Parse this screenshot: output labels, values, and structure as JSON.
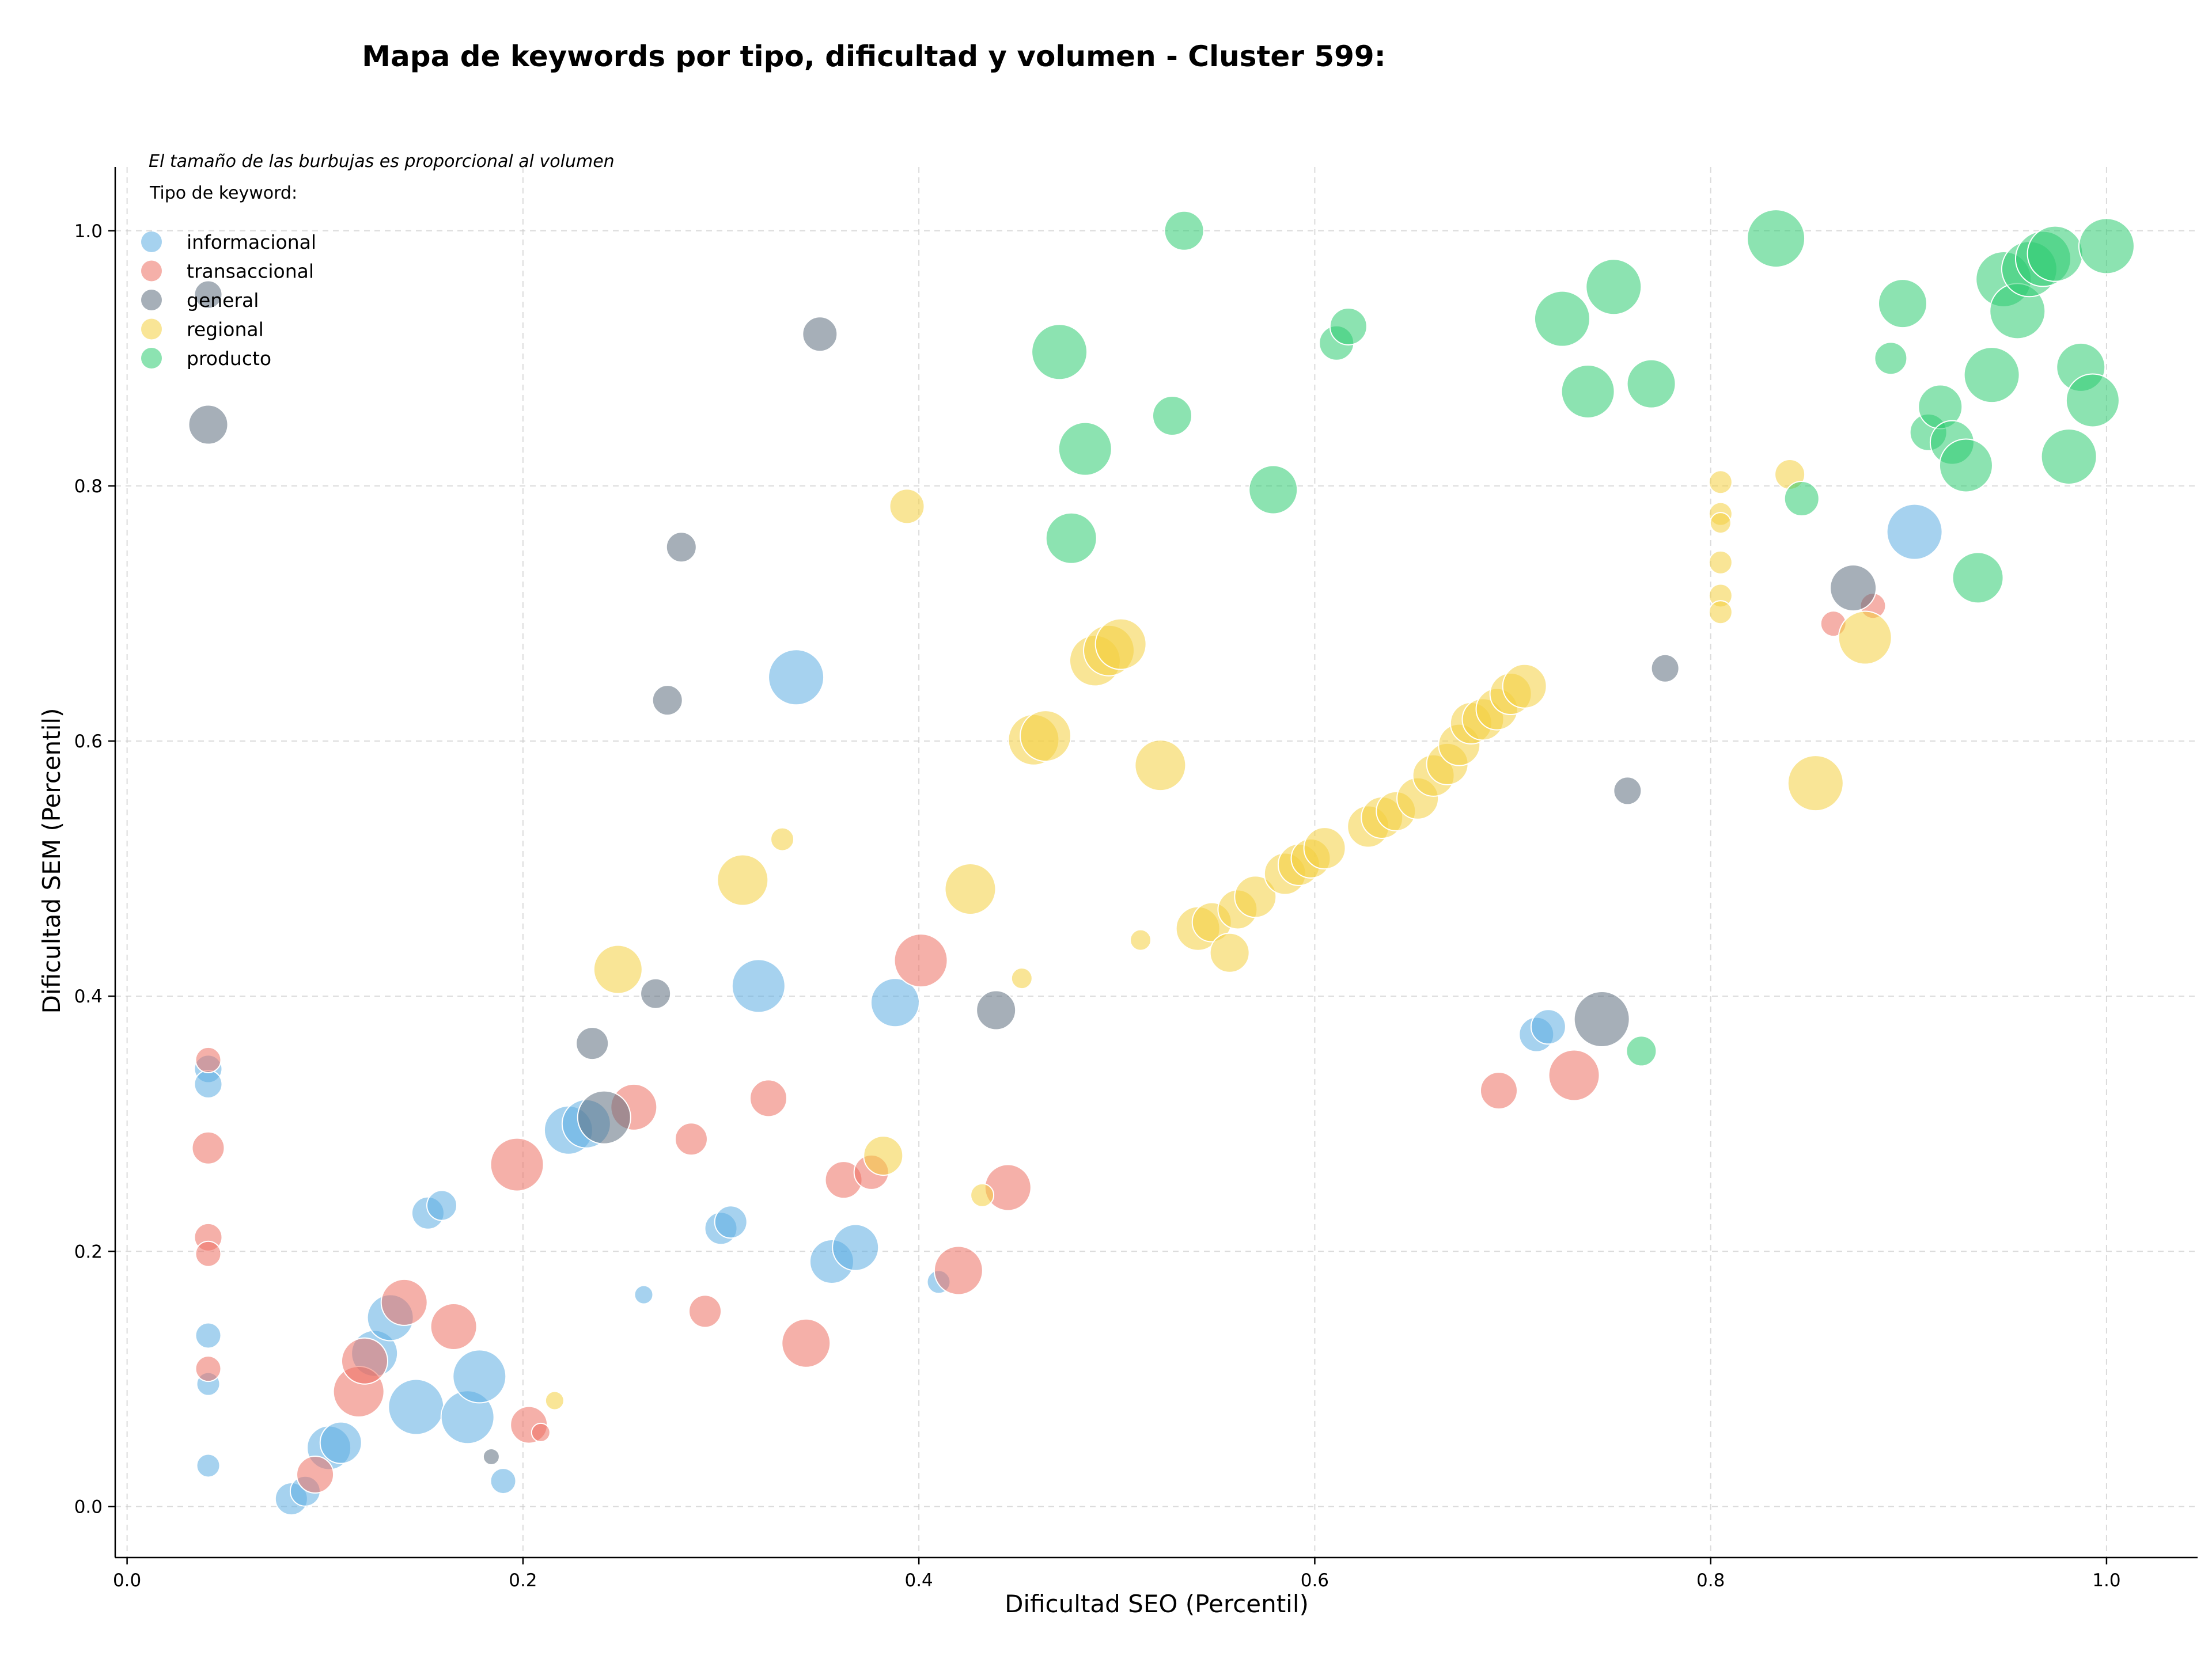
{
  "chart_data": {
    "type": "scatter",
    "title": "Mapa de keywords por tipo, dificultad y volumen - Cluster 599:",
    "xlabel": "Dificultad SEO (Percentil)",
    "ylabel": "Dificultad SEM (Percentil)",
    "xlim": [
      -0.006,
      1.046
    ],
    "ylim": [
      -0.04,
      1.05
    ],
    "xticks": [
      0.0,
      0.2,
      0.4,
      0.6,
      0.8,
      1.0
    ],
    "yticks": [
      0.0,
      0.2,
      0.4,
      0.6,
      0.8,
      1.0
    ],
    "xtick_labels": [
      "0.0",
      "0.2",
      "0.4",
      "0.6",
      "0.8",
      "1.0"
    ],
    "ytick_labels": [
      "0.0",
      "0.2",
      "0.4",
      "0.6",
      "0.8",
      "1.0"
    ],
    "grid": true,
    "legend_placement": "top-left",
    "note": "El tamaño de las burbujas es proporcional al volumen",
    "legend_title": "Tipo de keyword:",
    "series": [
      {
        "name": "informacional",
        "color": "#5DADE2",
        "points": [
          [
            0.041,
            0.343,
            24
          ],
          [
            0.041,
            0.331,
            24
          ],
          [
            0.041,
            0.134,
            22
          ],
          [
            0.041,
            0.096,
            20
          ],
          [
            0.041,
            0.032,
            20
          ],
          [
            0.083,
            0.006,
            28
          ],
          [
            0.09,
            0.012,
            26
          ],
          [
            0.102,
            0.046,
            38
          ],
          [
            0.108,
            0.05,
            36
          ],
          [
            0.125,
            0.12,
            40
          ],
          [
            0.133,
            0.148,
            40
          ],
          [
            0.146,
            0.078,
            48
          ],
          [
            0.152,
            0.23,
            28
          ],
          [
            0.159,
            0.236,
            26
          ],
          [
            0.172,
            0.07,
            46
          ],
          [
            0.178,
            0.102,
            46
          ],
          [
            0.19,
            0.02,
            22
          ],
          [
            0.223,
            0.295,
            42
          ],
          [
            0.232,
            0.3,
            42
          ],
          [
            0.261,
            0.166,
            16
          ],
          [
            0.3,
            0.218,
            28
          ],
          [
            0.305,
            0.223,
            28
          ],
          [
            0.319,
            0.408,
            46
          ],
          [
            0.338,
            0.65,
            48
          ],
          [
            0.356,
            0.192,
            38
          ],
          [
            0.368,
            0.203,
            40
          ],
          [
            0.388,
            0.395,
            42
          ],
          [
            0.41,
            0.176,
            20
          ],
          [
            0.712,
            0.37,
            30
          ],
          [
            0.718,
            0.376,
            30
          ],
          [
            0.903,
            0.764,
            48
          ]
        ]
      },
      {
        "name": "transaccional",
        "color": "#EC7063",
        "points": [
          [
            0.041,
            0.35,
            22
          ],
          [
            0.041,
            0.281,
            28
          ],
          [
            0.041,
            0.211,
            24
          ],
          [
            0.041,
            0.198,
            22
          ],
          [
            0.041,
            0.108,
            22
          ],
          [
            0.095,
            0.025,
            32
          ],
          [
            0.117,
            0.09,
            44
          ],
          [
            0.12,
            0.114,
            40
          ],
          [
            0.14,
            0.16,
            40
          ],
          [
            0.165,
            0.141,
            40
          ],
          [
            0.197,
            0.268,
            46
          ],
          [
            0.203,
            0.064,
            32
          ],
          [
            0.209,
            0.058,
            16
          ],
          [
            0.256,
            0.313,
            40
          ],
          [
            0.285,
            0.288,
            28
          ],
          [
            0.292,
            0.153,
            28
          ],
          [
            0.324,
            0.32,
            32
          ],
          [
            0.343,
            0.128,
            42
          ],
          [
            0.362,
            0.256,
            32
          ],
          [
            0.376,
            0.262,
            30
          ],
          [
            0.401,
            0.428,
            46
          ],
          [
            0.42,
            0.185,
            42
          ],
          [
            0.445,
            0.25,
            40
          ],
          [
            0.693,
            0.326,
            32
          ],
          [
            0.731,
            0.338,
            44
          ],
          [
            0.862,
            0.692,
            22
          ],
          [
            0.882,
            0.706,
            22
          ]
        ]
      },
      {
        "name": "general",
        "color": "#5D6D7E",
        "points": [
          [
            0.041,
            0.95,
            24
          ],
          [
            0.041,
            0.848,
            34
          ],
          [
            0.184,
            0.039,
            14
          ],
          [
            0.235,
            0.363,
            28
          ],
          [
            0.241,
            0.305,
            46
          ],
          [
            0.267,
            0.402,
            26
          ],
          [
            0.273,
            0.632,
            26
          ],
          [
            0.28,
            0.752,
            26
          ],
          [
            0.35,
            0.919,
            30
          ],
          [
            0.439,
            0.389,
            34
          ],
          [
            0.745,
            0.382,
            48
          ],
          [
            0.758,
            0.561,
            24
          ],
          [
            0.777,
            0.657,
            24
          ],
          [
            0.872,
            0.72,
            40
          ]
        ]
      },
      {
        "name": "regional",
        "color": "#F4D03F",
        "points": [
          [
            0.216,
            0.083,
            16
          ],
          [
            0.248,
            0.421,
            42
          ],
          [
            0.311,
            0.491,
            44
          ],
          [
            0.331,
            0.523,
            20
          ],
          [
            0.382,
            0.275,
            34
          ],
          [
            0.394,
            0.784,
            30
          ],
          [
            0.426,
            0.484,
            44
          ],
          [
            0.432,
            0.244,
            20
          ],
          [
            0.452,
            0.414,
            18
          ],
          [
            0.458,
            0.601,
            44
          ],
          [
            0.464,
            0.604,
            44
          ],
          [
            0.489,
            0.663,
            44
          ],
          [
            0.496,
            0.671,
            44
          ],
          [
            0.502,
            0.676,
            44
          ],
          [
            0.512,
            0.444,
            18
          ],
          [
            0.522,
            0.581,
            44
          ],
          [
            0.541,
            0.453,
            38
          ],
          [
            0.548,
            0.458,
            34
          ],
          [
            0.557,
            0.434,
            34
          ],
          [
            0.561,
            0.468,
            34
          ],
          [
            0.57,
            0.478,
            36
          ],
          [
            0.585,
            0.496,
            36
          ],
          [
            0.592,
            0.503,
            36
          ],
          [
            0.598,
            0.508,
            34
          ],
          [
            0.605,
            0.516,
            36
          ],
          [
            0.627,
            0.533,
            36
          ],
          [
            0.634,
            0.54,
            36
          ],
          [
            0.641,
            0.545,
            34
          ],
          [
            0.652,
            0.555,
            36
          ],
          [
            0.66,
            0.573,
            36
          ],
          [
            0.667,
            0.582,
            36
          ],
          [
            0.673,
            0.597,
            36
          ],
          [
            0.679,
            0.614,
            36
          ],
          [
            0.685,
            0.617,
            36
          ],
          [
            0.692,
            0.625,
            36
          ],
          [
            0.699,
            0.637,
            36
          ],
          [
            0.706,
            0.643,
            38
          ],
          [
            0.805,
            0.803,
            20
          ],
          [
            0.805,
            0.778,
            20
          ],
          [
            0.805,
            0.771,
            18
          ],
          [
            0.805,
            0.74,
            20
          ],
          [
            0.805,
            0.714,
            20
          ],
          [
            0.805,
            0.701,
            20
          ],
          [
            0.84,
            0.809,
            26
          ],
          [
            0.853,
            0.567,
            48
          ],
          [
            0.878,
            0.681,
            46
          ]
        ]
      },
      {
        "name": "producto",
        "color": "#2ECC71",
        "points": [
          [
            0.534,
            1.0,
            34
          ],
          [
            0.471,
            0.905,
            48
          ],
          [
            0.484,
            0.829,
            46
          ],
          [
            0.477,
            0.759,
            44
          ],
          [
            0.528,
            0.855,
            34
          ],
          [
            0.579,
            0.797,
            42
          ],
          [
            0.611,
            0.912,
            30
          ],
          [
            0.617,
            0.925,
            32
          ],
          [
            0.725,
            0.931,
            48
          ],
          [
            0.738,
            0.874,
            46
          ],
          [
            0.751,
            0.956,
            48
          ],
          [
            0.77,
            0.88,
            42
          ],
          [
            0.765,
            0.357,
            26
          ],
          [
            0.833,
            0.994,
            50
          ],
          [
            0.846,
            0.79,
            30
          ],
          [
            0.891,
            0.9,
            28
          ],
          [
            0.897,
            0.943,
            42
          ],
          [
            0.91,
            0.842,
            32
          ],
          [
            0.916,
            0.862,
            38
          ],
          [
            0.922,
            0.834,
            38
          ],
          [
            0.929,
            0.816,
            46
          ],
          [
            0.935,
            0.728,
            44
          ],
          [
            0.942,
            0.887,
            48
          ],
          [
            0.948,
            0.962,
            48
          ],
          [
            0.955,
            0.937,
            48
          ],
          [
            0.961,
            0.97,
            48
          ],
          [
            0.968,
            0.978,
            48
          ],
          [
            0.974,
            0.982,
            48
          ],
          [
            0.981,
            0.823,
            48
          ],
          [
            0.987,
            0.893,
            42
          ],
          [
            0.993,
            0.867,
            46
          ],
          [
            1.0,
            0.988,
            48
          ]
        ]
      }
    ]
  }
}
